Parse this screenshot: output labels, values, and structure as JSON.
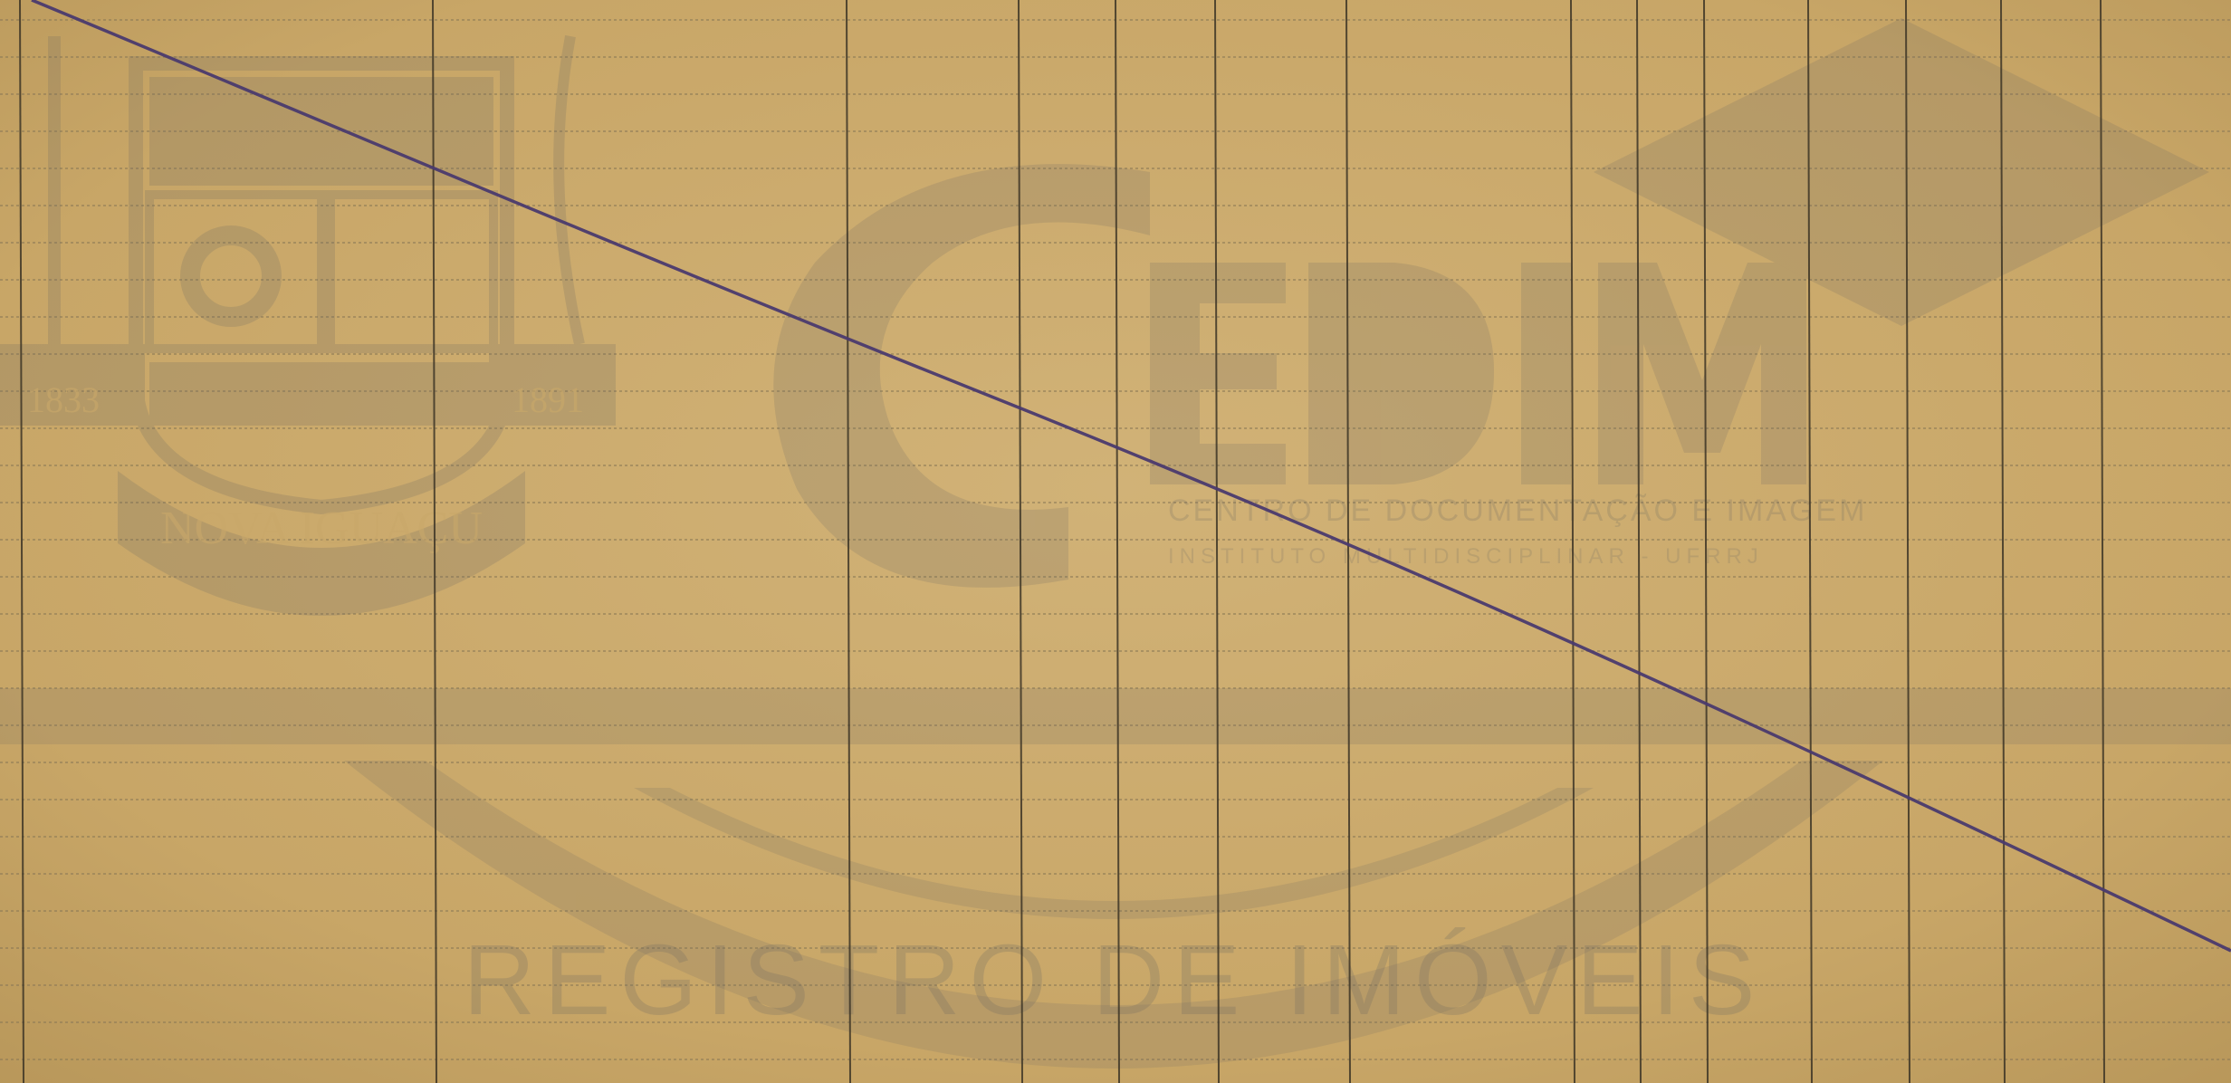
{
  "document": {
    "type": "ledger-page",
    "paper_color": "#c9a86a",
    "ink_color": "#4a3a6e"
  },
  "watermarks": {
    "crest": {
      "icon": "nova-iguacu-crest-icon",
      "year_left": "1833",
      "year_right": "1891",
      "banner": "NOVA IGUAÇU"
    },
    "cedim": {
      "icon": "cedim-logo-icon",
      "name": "CEDIM",
      "subtitle": "CENTRO DE DOCUMENTAÇÃO E IMAGEM",
      "institute": "INSTITUTO MULTIDISCIPLINAR - UFRRJ"
    },
    "registry": {
      "icon": "registro-seal-icon",
      "text": "REGISTRO DE IMÓVEIS"
    }
  }
}
